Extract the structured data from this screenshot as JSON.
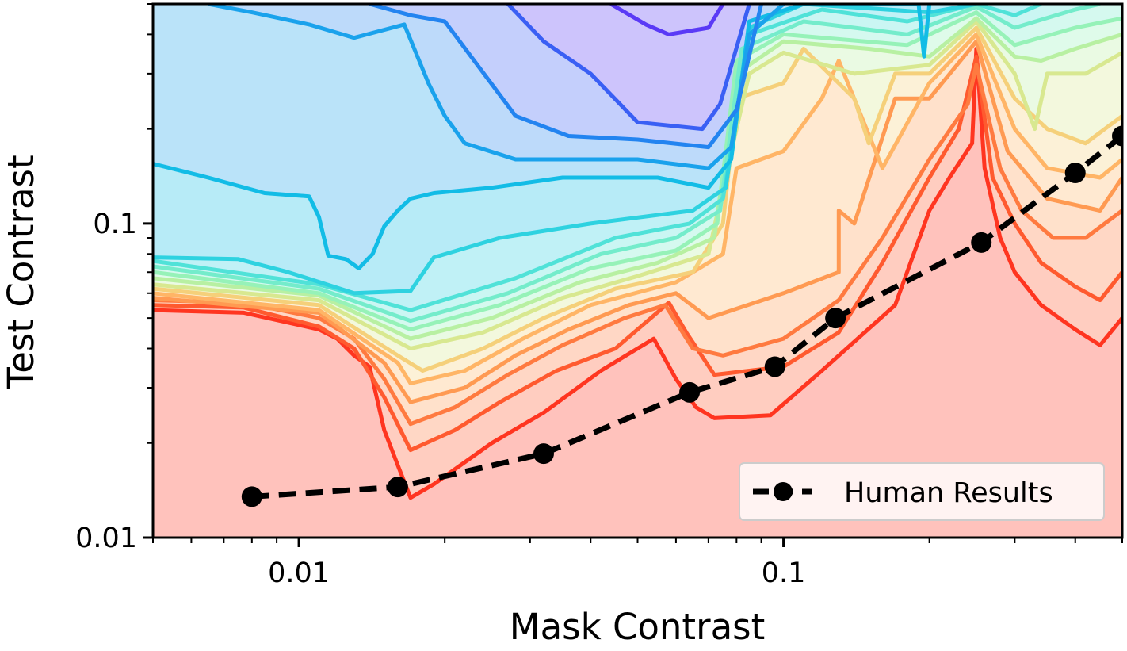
{
  "chart_data": {
    "type": "contour",
    "xlabel": "Mask Contrast",
    "ylabel": "Test Contrast",
    "x_scale": "log",
    "y_scale": "log",
    "xlim": [
      0.005,
      0.5
    ],
    "ylim": [
      0.01,
      0.5
    ],
    "x_ticks": [
      {
        "value": 0.01,
        "label": "0.01"
      },
      {
        "value": 0.1,
        "label": "0.1"
      }
    ],
    "y_ticks": [
      {
        "value": 0.01,
        "label": "0.01"
      },
      {
        "value": 0.1,
        "label": "0.1"
      }
    ],
    "grid": false,
    "legend": {
      "placement": "lower-right",
      "entries": [
        "Human Results"
      ]
    },
    "colormap": "rainbow",
    "fill_alpha": 0.3,
    "contour_line_colors": [
      "#ff3520",
      "#ff5a2f",
      "#ff7a40",
      "#ff9a52",
      "#ffb566",
      "#f5d07a",
      "#d8e890",
      "#b8f0a2",
      "#96f2b8",
      "#74eccb",
      "#50e2d8",
      "#2ed2e0",
      "#12bce6",
      "#1aa2ec",
      "#2384f0",
      "#3a5ff4",
      "#5a3af6"
    ],
    "contour_lines": [
      [
        [
          0.005,
          0.053
        ],
        [
          0.0077,
          0.052
        ],
        [
          0.011,
          0.046
        ],
        [
          0.012,
          0.043
        ],
        [
          0.013,
          0.038
        ],
        [
          0.014,
          0.035
        ],
        [
          0.015,
          0.022
        ],
        [
          0.016,
          0.017
        ],
        [
          0.017,
          0.0134
        ],
        [
          0.019,
          0.0148
        ],
        [
          0.025,
          0.02
        ],
        [
          0.032,
          0.025
        ],
        [
          0.042,
          0.034
        ],
        [
          0.054,
          0.043
        ],
        [
          0.06,
          0.032
        ],
        [
          0.066,
          0.026
        ],
        [
          0.072,
          0.024
        ],
        [
          0.094,
          0.0245
        ],
        [
          0.12,
          0.034
        ],
        [
          0.17,
          0.055
        ],
        [
          0.2,
          0.11
        ],
        [
          0.22,
          0.14
        ],
        [
          0.245,
          0.18
        ],
        [
          0.25,
          0.36
        ],
        [
          0.26,
          0.15
        ],
        [
          0.28,
          0.09
        ],
        [
          0.3,
          0.07
        ],
        [
          0.34,
          0.055
        ],
        [
          0.4,
          0.046
        ],
        [
          0.45,
          0.041
        ],
        [
          0.5,
          0.05
        ]
      ],
      [
        [
          0.005,
          0.055
        ],
        [
          0.0077,
          0.054
        ],
        [
          0.011,
          0.047
        ],
        [
          0.013,
          0.04
        ],
        [
          0.015,
          0.028
        ],
        [
          0.017,
          0.019
        ],
        [
          0.021,
          0.022
        ],
        [
          0.026,
          0.027
        ],
        [
          0.034,
          0.034
        ],
        [
          0.045,
          0.04
        ],
        [
          0.058,
          0.056
        ],
        [
          0.063,
          0.045
        ],
        [
          0.072,
          0.033
        ],
        [
          0.1,
          0.035
        ],
        [
          0.13,
          0.045
        ],
        [
          0.16,
          0.075
        ],
        [
          0.2,
          0.14
        ],
        [
          0.23,
          0.2
        ],
        [
          0.25,
          0.34
        ],
        [
          0.27,
          0.14
        ],
        [
          0.3,
          0.1
        ],
        [
          0.34,
          0.075
        ],
        [
          0.4,
          0.063
        ],
        [
          0.45,
          0.057
        ],
        [
          0.5,
          0.07
        ]
      ],
      [
        [
          0.005,
          0.057
        ],
        [
          0.0077,
          0.056
        ],
        [
          0.011,
          0.05
        ],
        [
          0.013,
          0.043
        ],
        [
          0.015,
          0.032
        ],
        [
          0.017,
          0.023
        ],
        [
          0.021,
          0.026
        ],
        [
          0.027,
          0.033
        ],
        [
          0.035,
          0.041
        ],
        [
          0.047,
          0.05
        ],
        [
          0.057,
          0.055
        ],
        [
          0.065,
          0.04
        ],
        [
          0.075,
          0.038
        ],
        [
          0.1,
          0.043
        ],
        [
          0.13,
          0.057
        ],
        [
          0.16,
          0.09
        ],
        [
          0.2,
          0.16
        ],
        [
          0.24,
          0.24
        ],
        [
          0.25,
          0.32
        ],
        [
          0.28,
          0.15
        ],
        [
          0.31,
          0.11
        ],
        [
          0.36,
          0.09
        ],
        [
          0.42,
          0.09
        ],
        [
          0.5,
          0.11
        ]
      ],
      [
        [
          0.005,
          0.058
        ],
        [
          0.011,
          0.052
        ],
        [
          0.015,
          0.036
        ],
        [
          0.017,
          0.027
        ],
        [
          0.022,
          0.03
        ],
        [
          0.028,
          0.038
        ],
        [
          0.036,
          0.046
        ],
        [
          0.048,
          0.055
        ],
        [
          0.06,
          0.06
        ],
        [
          0.07,
          0.05
        ],
        [
          0.1,
          0.06
        ],
        [
          0.13,
          0.07
        ],
        [
          0.13,
          0.11
        ],
        [
          0.14,
          0.1
        ],
        [
          0.17,
          0.25
        ],
        [
          0.2,
          0.25
        ],
        [
          0.25,
          0.38
        ],
        [
          0.29,
          0.17
        ],
        [
          0.35,
          0.12
        ],
        [
          0.45,
          0.11
        ],
        [
          0.5,
          0.14
        ]
      ],
      [
        [
          0.005,
          0.06
        ],
        [
          0.011,
          0.053
        ],
        [
          0.016,
          0.036
        ],
        [
          0.017,
          0.031
        ],
        [
          0.022,
          0.034
        ],
        [
          0.029,
          0.043
        ],
        [
          0.04,
          0.055
        ],
        [
          0.06,
          0.065
        ],
        [
          0.075,
          0.08
        ],
        [
          0.08,
          0.15
        ],
        [
          0.1,
          0.17
        ],
        [
          0.12,
          0.25
        ],
        [
          0.13,
          0.33
        ],
        [
          0.16,
          0.15
        ],
        [
          0.2,
          0.28
        ],
        [
          0.25,
          0.4
        ],
        [
          0.3,
          0.2
        ],
        [
          0.35,
          0.15
        ],
        [
          0.45,
          0.14
        ],
        [
          0.5,
          0.16
        ]
      ],
      [
        [
          0.005,
          0.062
        ],
        [
          0.011,
          0.055
        ],
        [
          0.016,
          0.038
        ],
        [
          0.018,
          0.034
        ],
        [
          0.024,
          0.04
        ],
        [
          0.032,
          0.05
        ],
        [
          0.045,
          0.062
        ],
        [
          0.065,
          0.07
        ],
        [
          0.075,
          0.1
        ],
        [
          0.08,
          0.25
        ],
        [
          0.1,
          0.28
        ],
        [
          0.11,
          0.36
        ],
        [
          0.14,
          0.25
        ],
        [
          0.15,
          0.18
        ],
        [
          0.17,
          0.3
        ],
        [
          0.2,
          0.3
        ],
        [
          0.25,
          0.42
        ],
        [
          0.3,
          0.25
        ],
        [
          0.35,
          0.2
        ],
        [
          0.42,
          0.18
        ],
        [
          0.5,
          0.22
        ]
      ],
      [
        [
          0.005,
          0.064
        ],
        [
          0.011,
          0.057
        ],
        [
          0.017,
          0.04
        ],
        [
          0.024,
          0.045
        ],
        [
          0.035,
          0.058
        ],
        [
          0.05,
          0.068
        ],
        [
          0.07,
          0.08
        ],
        [
          0.075,
          0.13
        ],
        [
          0.085,
          0.3
        ],
        [
          0.1,
          0.35
        ],
        [
          0.14,
          0.3
        ],
        [
          0.2,
          0.32
        ],
        [
          0.25,
          0.44
        ],
        [
          0.3,
          0.3
        ],
        [
          0.33,
          0.2
        ],
        [
          0.35,
          0.3
        ],
        [
          0.42,
          0.3
        ],
        [
          0.5,
          0.35
        ]
      ],
      [
        [
          0.005,
          0.067
        ],
        [
          0.011,
          0.059
        ],
        [
          0.017,
          0.043
        ],
        [
          0.025,
          0.05
        ],
        [
          0.038,
          0.065
        ],
        [
          0.055,
          0.075
        ],
        [
          0.072,
          0.09
        ],
        [
          0.08,
          0.3
        ],
        [
          0.1,
          0.38
        ],
        [
          0.15,
          0.36
        ],
        [
          0.2,
          0.34
        ],
        [
          0.25,
          0.45
        ],
        [
          0.3,
          0.34
        ],
        [
          0.34,
          0.33
        ],
        [
          0.4,
          0.36
        ],
        [
          0.5,
          0.4
        ]
      ],
      [
        [
          0.005,
          0.07
        ],
        [
          0.011,
          0.06
        ],
        [
          0.017,
          0.046
        ],
        [
          0.026,
          0.055
        ],
        [
          0.04,
          0.072
        ],
        [
          0.06,
          0.082
        ],
        [
          0.073,
          0.1
        ],
        [
          0.08,
          0.33
        ],
        [
          0.1,
          0.4
        ],
        [
          0.18,
          0.37
        ],
        [
          0.25,
          0.47
        ],
        [
          0.3,
          0.37
        ],
        [
          0.4,
          0.42
        ],
        [
          0.5,
          0.45
        ]
      ],
      [
        [
          0.005,
          0.073
        ],
        [
          0.011,
          0.062
        ],
        [
          0.017,
          0.049
        ],
        [
          0.027,
          0.06
        ],
        [
          0.042,
          0.08
        ],
        [
          0.06,
          0.09
        ],
        [
          0.074,
          0.11
        ],
        [
          0.082,
          0.36
        ],
        [
          0.11,
          0.44
        ],
        [
          0.18,
          0.4
        ],
        [
          0.25,
          0.49
        ],
        [
          0.3,
          0.42
        ],
        [
          0.4,
          0.48
        ],
        [
          0.45,
          0.5
        ]
      ],
      [
        [
          0.005,
          0.076
        ],
        [
          0.011,
          0.064
        ],
        [
          0.017,
          0.053
        ],
        [
          0.028,
          0.067
        ],
        [
          0.045,
          0.09
        ],
        [
          0.064,
          0.1
        ],
        [
          0.075,
          0.12
        ],
        [
          0.085,
          0.4
        ],
        [
          0.12,
          0.48
        ],
        [
          0.18,
          0.44
        ],
        [
          0.25,
          0.5
        ],
        [
          0.3,
          0.46
        ],
        [
          0.34,
          0.5
        ]
      ],
      [
        [
          0.005,
          0.078
        ],
        [
          0.0075,
          0.077
        ],
        [
          0.0095,
          0.07
        ],
        [
          0.013,
          0.06
        ],
        [
          0.017,
          0.061
        ],
        [
          0.019,
          0.078
        ],
        [
          0.026,
          0.09
        ],
        [
          0.04,
          0.1
        ],
        [
          0.065,
          0.11
        ],
        [
          0.076,
          0.13
        ],
        [
          0.085,
          0.42
        ],
        [
          0.11,
          0.5
        ],
        [
          0.2,
          0.47
        ],
        [
          0.25,
          0.5
        ]
      ],
      [
        [
          0.005,
          0.155
        ],
        [
          0.0065,
          0.14
        ],
        [
          0.0085,
          0.125
        ],
        [
          0.0105,
          0.122
        ],
        [
          0.011,
          0.105
        ],
        [
          0.0115,
          0.079
        ],
        [
          0.0125,
          0.077
        ],
        [
          0.0133,
          0.072
        ],
        [
          0.0142,
          0.08
        ],
        [
          0.015,
          0.098
        ],
        [
          0.016,
          0.11
        ],
        [
          0.017,
          0.12
        ],
        [
          0.019,
          0.125
        ],
        [
          0.025,
          0.13
        ],
        [
          0.035,
          0.14
        ],
        [
          0.055,
          0.14
        ],
        [
          0.07,
          0.13
        ],
        [
          0.078,
          0.16
        ],
        [
          0.085,
          0.44
        ],
        [
          0.11,
          0.5
        ],
        [
          0.19,
          0.5
        ],
        [
          0.195,
          0.34
        ],
        [
          0.2,
          0.5
        ]
      ],
      [
        [
          0.0065,
          0.5
        ],
        [
          0.008,
          0.47
        ],
        [
          0.0105,
          0.43
        ],
        [
          0.013,
          0.39
        ],
        [
          0.0165,
          0.43
        ],
        [
          0.0185,
          0.28
        ],
        [
          0.02,
          0.22
        ],
        [
          0.022,
          0.18
        ],
        [
          0.028,
          0.16
        ],
        [
          0.05,
          0.16
        ],
        [
          0.07,
          0.15
        ],
        [
          0.078,
          0.175
        ],
        [
          0.085,
          0.4
        ],
        [
          0.1,
          0.5
        ]
      ],
      [
        [
          0.014,
          0.5
        ],
        [
          0.017,
          0.46
        ],
        [
          0.02,
          0.44
        ],
        [
          0.028,
          0.22
        ],
        [
          0.036,
          0.19
        ],
        [
          0.05,
          0.185
        ],
        [
          0.07,
          0.175
        ],
        [
          0.08,
          0.23
        ],
        [
          0.09,
          0.5
        ]
      ],
      [
        [
          0.027,
          0.5
        ],
        [
          0.032,
          0.38
        ],
        [
          0.04,
          0.3
        ],
        [
          0.05,
          0.21
        ],
        [
          0.068,
          0.2
        ],
        [
          0.074,
          0.24
        ],
        [
          0.085,
          0.5
        ]
      ],
      [
        [
          0.044,
          0.5
        ],
        [
          0.052,
          0.43
        ],
        [
          0.058,
          0.4
        ],
        [
          0.07,
          0.42
        ],
        [
          0.075,
          0.5
        ]
      ]
    ],
    "series": [
      {
        "name": "Human Results",
        "style": "dashed-line-with-circle-markers",
        "color": "#000000",
        "x": [
          0.008,
          0.016,
          0.032,
          0.064,
          0.096,
          0.128,
          0.256,
          0.4,
          0.5
        ],
        "y": [
          0.0135,
          0.0145,
          0.0185,
          0.029,
          0.035,
          0.05,
          0.087,
          0.145,
          0.19
        ]
      }
    ]
  }
}
